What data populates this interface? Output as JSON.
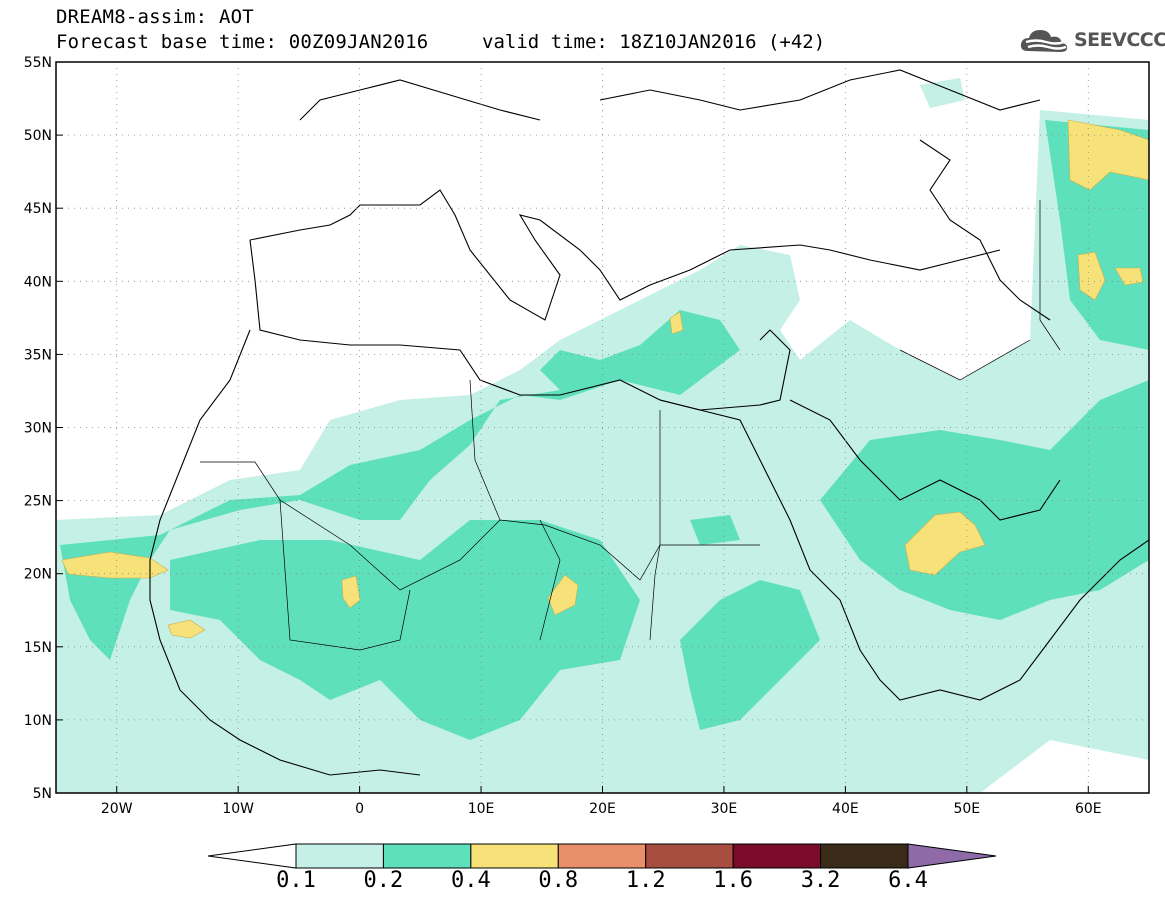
{
  "header": {
    "title": "DREAM8-assim: AOT",
    "base_time": "Forecast base time: 00Z09JAN2016",
    "valid_time": "valid time: 18Z10JAN2016 (+42)",
    "logo_text": "SEEVCCC",
    "logo_icon": "cloud-icon"
  },
  "map": {
    "projection": "lat-lon",
    "lon_range": [
      -25,
      65
    ],
    "lat_range": [
      5,
      55
    ],
    "lon_ticks": [
      "20W",
      "10W",
      "0",
      "10E",
      "20E",
      "30E",
      "40E",
      "50E",
      "60E"
    ],
    "lat_ticks": [
      "55N",
      "50N",
      "45N",
      "40N",
      "35N",
      "30N",
      "25N",
      "20N",
      "15N",
      "10N",
      "5N"
    ],
    "grid": "dotted",
    "background": "#ffffff",
    "coastline_color": "#000000"
  },
  "colorbar": {
    "labels": [
      "0.1",
      "0.2",
      "0.4",
      "0.8",
      "1.2",
      "1.6",
      "3.2",
      "6.4"
    ],
    "colors": [
      "#ffffff",
      "#c4f0e6",
      "#5fe0bd",
      "#f7e27a",
      "#e8906a",
      "#a84e40",
      "#7a0c2a",
      "#3a2a18",
      "#8e6aa8"
    ]
  },
  "fields": {
    "levels": [
      {
        "range": "0.1-0.2",
        "color": "#c4f0e6"
      },
      {
        "range": "0.2-0.4",
        "color": "#5fe0bd"
      },
      {
        "range": "0.4-0.8",
        "color": "#f7e27a"
      }
    ]
  }
}
